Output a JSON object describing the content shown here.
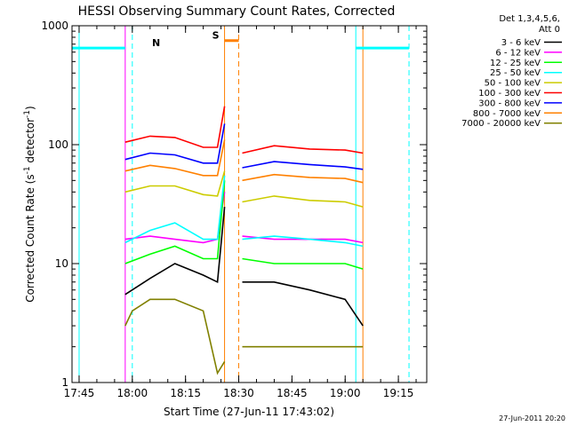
{
  "chart_data": {
    "type": "line",
    "title": "HESSI Observing Summary Count Rates, Corrected",
    "xlabel": "Start Time (27-Jun-11 17:43:02)",
    "ylabel": "Corrected Count Rate (s-1 detector-1)",
    "ylabel_main": "Corrected Count Rate (s",
    "ylabel_sup1": "-1",
    "ylabel_mid": " detector",
    "ylabel_sup2": "-1",
    "ylabel_end": ")",
    "yscale": "log",
    "ylim": [
      1,
      1000
    ],
    "xlim": [
      "17:43",
      "19:23"
    ],
    "xticks": [
      "17:45",
      "18:00",
      "18:15",
      "18:30",
      "18:45",
      "19:00",
      "19:15"
    ],
    "yticks": [
      "1",
      "10",
      "100",
      "1000"
    ],
    "legend_header": [
      "Det 1,3,4,5,6,",
      "Att 0"
    ],
    "legend_position": "right",
    "series": [
      {
        "name": "3 - 6 keV",
        "color": "#000000",
        "t": [
          "17:58",
          "18:05",
          "18:12",
          "18:20",
          "18:24",
          "18:26",
          "18:29",
          "18:31",
          "18:40",
          "18:50",
          "19:00",
          "19:05"
        ],
        "values": [
          5.5,
          7.5,
          10,
          8,
          7,
          30,
          null,
          7,
          7,
          6,
          5,
          3
        ]
      },
      {
        "name": "6 - 12 keV",
        "color": "#ff00ff",
        "t": [
          "17:58",
          "18:05",
          "18:12",
          "18:20",
          "18:24",
          "18:26",
          "18:29",
          "18:31",
          "18:40",
          "18:50",
          "19:00",
          "19:05"
        ],
        "values": [
          16,
          17,
          16,
          15,
          16,
          40,
          null,
          17,
          16,
          16,
          16,
          15
        ]
      },
      {
        "name": "12 - 25 keV",
        "color": "#00ff00",
        "t": [
          "17:58",
          "18:05",
          "18:12",
          "18:20",
          "18:24",
          "18:26",
          "18:29",
          "18:31",
          "18:40",
          "18:50",
          "19:00",
          "19:05"
        ],
        "values": [
          10,
          12,
          14,
          11,
          11,
          50,
          null,
          11,
          10,
          10,
          10,
          9
        ]
      },
      {
        "name": "25 - 50 keV",
        "color": "#00ffff",
        "t": [
          "17:58",
          "18:05",
          "18:12",
          "18:20",
          "18:24",
          "18:26",
          "18:29",
          "18:31",
          "18:40",
          "18:50",
          "19:00",
          "19:05"
        ],
        "values": [
          15,
          19,
          22,
          16,
          16,
          55,
          null,
          16,
          17,
          16,
          15,
          14
        ]
      },
      {
        "name": "50 - 100 keV",
        "color": "#cccc00",
        "t": [
          "17:58",
          "18:05",
          "18:12",
          "18:20",
          "18:24",
          "18:26",
          "18:29",
          "18:31",
          "18:40",
          "18:50",
          "19:00",
          "19:05"
        ],
        "values": [
          40,
          45,
          45,
          38,
          37,
          60,
          null,
          33,
          37,
          34,
          33,
          30
        ]
      },
      {
        "name": "100 - 300 keV",
        "color": "#ff0000",
        "t": [
          "17:58",
          "18:05",
          "18:12",
          "18:20",
          "18:24",
          "18:26",
          "18:29",
          "18:31",
          "18:40",
          "18:50",
          "19:00",
          "19:05"
        ],
        "values": [
          105,
          118,
          115,
          95,
          95,
          210,
          null,
          85,
          98,
          92,
          90,
          85
        ]
      },
      {
        "name": "300 - 800 keV",
        "color": "#0000ff",
        "t": [
          "17:58",
          "18:05",
          "18:12",
          "18:20",
          "18:24",
          "18:26",
          "18:29",
          "18:31",
          "18:40",
          "18:50",
          "19:00",
          "19:05"
        ],
        "values": [
          75,
          85,
          82,
          70,
          70,
          150,
          null,
          64,
          72,
          68,
          65,
          62
        ]
      },
      {
        "name": "800 - 7000 keV",
        "color": "#ff8000",
        "t": [
          "17:58",
          "18:05",
          "18:12",
          "18:20",
          "18:24",
          "18:26",
          "18:29",
          "18:31",
          "18:40",
          "18:50",
          "19:00",
          "19:05"
        ],
        "values": [
          60,
          67,
          63,
          55,
          55,
          110,
          null,
          50,
          56,
          53,
          52,
          48
        ]
      },
      {
        "name": "7000 - 20000 keV",
        "color": "#808000",
        "t": [
          "17:58",
          "18:00",
          "18:05",
          "18:12",
          "18:20",
          "18:24",
          "18:26",
          "18:29",
          "18:31",
          "18:40",
          "18:50",
          "19:00",
          "19:05"
        ],
        "values": [
          3,
          4,
          5,
          5,
          4,
          1.2,
          1.5,
          null,
          2,
          2,
          2,
          2,
          2
        ]
      }
    ],
    "annotations": [
      {
        "label": "N",
        "color": "#00ffff",
        "bar": [
          "17:43",
          "17:58"
        ],
        "value": 650,
        "marker_time": "18:00"
      },
      {
        "label": "",
        "color": "#00ffff",
        "bar": [
          "19:03",
          "19:18"
        ],
        "value": 650,
        "marker_time": "19:18"
      },
      {
        "label": "S",
        "color": "#ff8000",
        "bar": [
          "18:26",
          "18:30"
        ],
        "value": 750,
        "marker_time": "18:30"
      }
    ],
    "vertical_lines": [
      {
        "t": "17:58",
        "color": "#ff00ff",
        "style": "solid"
      },
      {
        "t": "18:26",
        "color": "#ff8000",
        "style": "solid"
      },
      {
        "t": "19:05",
        "color": "#ff8000",
        "style": "solid"
      },
      {
        "t": "17:45",
        "color": "#00ffff",
        "style": "solid"
      },
      {
        "t": "19:03",
        "color": "#00ffff",
        "style": "solid"
      }
    ],
    "grid": false
  },
  "footer_date": "27-Jun-2011 20:20"
}
